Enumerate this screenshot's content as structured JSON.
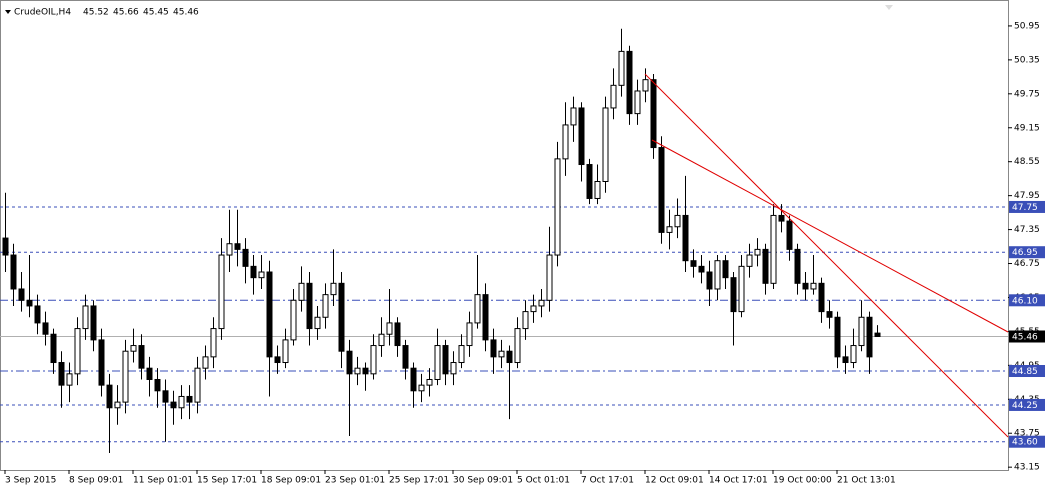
{
  "chart_data": {
    "type": "candlestick",
    "title": "CrudeOIL,H4",
    "categories": [
      "3 Sep 2015",
      null,
      null,
      null,
      null,
      null,
      null,
      null,
      "8 Sep 09:01",
      null,
      null,
      null,
      null,
      null,
      null,
      null,
      "11 Sep 01:01",
      null,
      null,
      null,
      null,
      null,
      null,
      null,
      "15 Sep 17:01",
      null,
      null,
      null,
      null,
      null,
      null,
      null,
      "18 Sep 09:01",
      null,
      null,
      null,
      null,
      null,
      null,
      null,
      "23 Sep 01:01",
      null,
      null,
      null,
      null,
      null,
      null,
      null,
      "25 Sep 17:01",
      null,
      null,
      null,
      null,
      null,
      null,
      null,
      "30 Sep 09:01",
      null,
      null,
      null,
      null,
      null,
      null,
      null,
      "5 Oct 01:01",
      null,
      null,
      null,
      null,
      null,
      null,
      null,
      "7 Oct 17:01",
      null,
      null,
      null,
      null,
      null,
      null,
      null,
      "12 Oct 09:01",
      null,
      null,
      null,
      null,
      null,
      null,
      null,
      "14 Oct 17:01",
      null,
      null,
      null,
      null,
      null,
      null,
      null,
      "19 Oct 00:00",
      null,
      null,
      null,
      null,
      null,
      null,
      null,
      "21 Oct 13:01",
      null,
      null,
      null,
      null,
      null
    ],
    "ohlc": [
      [
        47.2,
        48.0,
        46.6,
        46.9
      ],
      [
        46.9,
        47.1,
        46.0,
        46.3
      ],
      [
        46.3,
        46.6,
        45.9,
        46.1
      ],
      [
        46.1,
        46.9,
        45.8,
        46.0
      ],
      [
        46.0,
        46.2,
        45.5,
        45.7
      ],
      [
        45.7,
        45.9,
        45.3,
        45.5
      ],
      [
        45.5,
        45.6,
        44.8,
        45.0
      ],
      [
        45.0,
        45.2,
        44.2,
        44.6
      ],
      [
        44.6,
        45.0,
        44.3,
        44.8
      ],
      [
        44.8,
        45.8,
        44.6,
        45.6
      ],
      [
        45.6,
        46.2,
        45.4,
        46.0
      ],
      [
        46.0,
        46.1,
        45.2,
        45.4
      ],
      [
        45.4,
        45.6,
        44.4,
        44.6
      ],
      [
        44.6,
        44.8,
        43.4,
        44.2
      ],
      [
        44.2,
        44.6,
        43.9,
        44.3
      ],
      [
        44.3,
        45.4,
        44.1,
        45.2
      ],
      [
        45.2,
        45.6,
        45.0,
        45.3
      ],
      [
        45.3,
        45.5,
        44.7,
        44.9
      ],
      [
        44.9,
        45.1,
        44.4,
        44.7
      ],
      [
        44.7,
        44.9,
        44.2,
        44.5
      ],
      [
        44.5,
        44.7,
        43.6,
        44.3
      ],
      [
        44.3,
        44.5,
        43.9,
        44.2
      ],
      [
        44.2,
        44.6,
        44.0,
        44.4
      ],
      [
        44.4,
        44.6,
        44.0,
        44.3
      ],
      [
        44.3,
        45.1,
        44.1,
        44.9
      ],
      [
        44.9,
        45.3,
        44.7,
        45.1
      ],
      [
        45.1,
        45.8,
        44.9,
        45.6
      ],
      [
        45.6,
        47.2,
        45.4,
        46.9
      ],
      [
        46.9,
        47.7,
        46.6,
        47.1
      ],
      [
        47.1,
        47.7,
        46.7,
        47.0
      ],
      [
        47.0,
        47.2,
        46.4,
        46.7
      ],
      [
        46.7,
        46.9,
        46.2,
        46.5
      ],
      [
        46.5,
        46.9,
        46.3,
        46.6
      ],
      [
        46.6,
        46.8,
        44.4,
        45.1
      ],
      [
        45.1,
        45.3,
        44.8,
        45.0
      ],
      [
        45.0,
        45.6,
        44.9,
        45.4
      ],
      [
        45.4,
        46.3,
        45.3,
        46.1
      ],
      [
        46.1,
        46.7,
        45.9,
        46.4
      ],
      [
        46.4,
        46.6,
        45.3,
        45.6
      ],
      [
        45.6,
        46.0,
        45.4,
        45.8
      ],
      [
        45.8,
        46.4,
        45.6,
        46.2
      ],
      [
        46.2,
        47.0,
        46.0,
        46.4
      ],
      [
        46.4,
        46.6,
        44.9,
        45.2
      ],
      [
        45.2,
        45.4,
        43.7,
        44.8
      ],
      [
        44.8,
        45.1,
        44.6,
        44.9
      ],
      [
        44.9,
        45.0,
        44.5,
        44.8
      ],
      [
        44.8,
        45.5,
        44.7,
        45.3
      ],
      [
        45.3,
        45.8,
        45.1,
        45.5
      ],
      [
        45.5,
        46.3,
        45.3,
        45.7
      ],
      [
        45.7,
        45.8,
        45.1,
        45.3
      ],
      [
        45.3,
        45.4,
        44.7,
        44.9
      ],
      [
        44.9,
        45.0,
        44.2,
        44.5
      ],
      [
        44.5,
        44.8,
        44.3,
        44.6
      ],
      [
        44.6,
        44.9,
        44.4,
        44.7
      ],
      [
        44.7,
        45.6,
        44.6,
        45.3
      ],
      [
        45.3,
        45.4,
        44.6,
        44.8
      ],
      [
        44.8,
        45.2,
        44.6,
        45.0
      ],
      [
        45.0,
        45.5,
        44.9,
        45.3
      ],
      [
        45.3,
        45.9,
        45.1,
        45.7
      ],
      [
        45.7,
        46.9,
        45.6,
        46.2
      ],
      [
        46.2,
        46.4,
        45.2,
        45.4
      ],
      [
        45.4,
        45.6,
        44.8,
        45.1
      ],
      [
        45.1,
        45.4,
        44.9,
        45.2
      ],
      [
        45.2,
        45.3,
        44.0,
        45.0
      ],
      [
        45.0,
        45.8,
        44.9,
        45.6
      ],
      [
        45.6,
        46.1,
        45.4,
        45.9
      ],
      [
        45.9,
        46.2,
        45.7,
        46.0
      ],
      [
        46.0,
        46.3,
        45.8,
        46.1
      ],
      [
        46.1,
        47.4,
        45.9,
        46.9
      ],
      [
        46.9,
        48.9,
        46.7,
        48.6
      ],
      [
        48.6,
        49.6,
        48.3,
        49.2
      ],
      [
        49.2,
        49.7,
        48.9,
        49.5
      ],
      [
        49.5,
        49.6,
        48.2,
        48.5
      ],
      [
        48.5,
        48.6,
        47.8,
        47.9
      ],
      [
        47.9,
        48.5,
        47.8,
        48.2
      ],
      [
        48.2,
        49.7,
        48.0,
        49.5
      ],
      [
        49.5,
        50.2,
        49.3,
        49.9
      ],
      [
        49.9,
        50.9,
        49.7,
        50.5
      ],
      [
        50.5,
        50.6,
        49.2,
        49.4
      ],
      [
        49.4,
        50.0,
        49.2,
        49.8
      ],
      [
        49.8,
        50.2,
        49.6,
        50.0
      ],
      [
        50.0,
        50.1,
        48.6,
        48.8
      ],
      [
        48.8,
        49.0,
        47.1,
        47.3
      ],
      [
        47.3,
        47.7,
        47.0,
        47.4
      ],
      [
        47.4,
        47.9,
        47.2,
        47.6
      ],
      [
        47.6,
        48.3,
        46.6,
        46.8
      ],
      [
        46.8,
        47.0,
        46.5,
        46.7
      ],
      [
        46.7,
        46.9,
        46.4,
        46.6
      ],
      [
        46.6,
        46.8,
        46.0,
        46.3
      ],
      [
        46.3,
        46.9,
        46.1,
        46.8
      ],
      [
        46.8,
        46.9,
        46.3,
        46.5
      ],
      [
        46.5,
        46.6,
        45.3,
        45.9
      ],
      [
        45.9,
        46.9,
        45.8,
        46.7
      ],
      [
        46.7,
        47.1,
        46.5,
        46.9
      ],
      [
        46.9,
        47.2,
        46.7,
        47.0
      ],
      [
        47.0,
        47.1,
        46.2,
        46.4
      ],
      [
        46.4,
        47.8,
        46.3,
        47.6
      ],
      [
        47.6,
        47.8,
        47.3,
        47.5
      ],
      [
        47.5,
        47.6,
        46.8,
        47.0
      ],
      [
        47.0,
        47.1,
        46.2,
        46.4
      ],
      [
        46.4,
        46.6,
        46.1,
        46.3
      ],
      [
        46.3,
        46.9,
        46.2,
        46.4
      ],
      [
        46.4,
        46.5,
        45.7,
        45.9
      ],
      [
        45.9,
        46.1,
        45.6,
        45.8
      ],
      [
        45.8,
        45.9,
        44.9,
        45.1
      ],
      [
        45.1,
        45.3,
        44.8,
        45.0
      ],
      [
        45.0,
        45.6,
        44.9,
        45.3
      ],
      [
        45.3,
        46.1,
        45.2,
        45.8
      ],
      [
        45.8,
        45.9,
        44.8,
        45.1
      ],
      [
        45.52,
        45.66,
        45.45,
        45.46
      ]
    ],
    "ylim": [
      43.1,
      51.32
    ],
    "yticks": [
      50.95,
      50.35,
      49.75,
      49.15,
      48.55,
      47.95,
      47.35,
      46.75,
      46.15,
      45.55,
      44.95,
      44.35,
      43.75,
      43.15
    ],
    "levels": [
      {
        "value": 47.75,
        "label": "47.75",
        "style": "dashed",
        "color": "#3a4fb8"
      },
      {
        "value": 46.95,
        "label": "46.95",
        "style": "dashed",
        "color": "#3a4fb8"
      },
      {
        "value": 46.1,
        "label": "46.10",
        "style": "dashdot",
        "color": "#3a4fb8"
      },
      {
        "value": 45.46,
        "label": "45.46",
        "style": "solid",
        "color": "#000000"
      },
      {
        "value": 44.85,
        "label": "44.85",
        "style": "dashdot",
        "color": "#3a4fb8"
      },
      {
        "value": 44.25,
        "label": "44.25",
        "style": "dashed",
        "color": "#3a4fb8"
      },
      {
        "value": 43.6,
        "label": "43.60",
        "style": "dashed",
        "color": "#3a4fb8"
      }
    ],
    "bull_color": "#ffffff",
    "bear_color": "#000000"
  }
}
